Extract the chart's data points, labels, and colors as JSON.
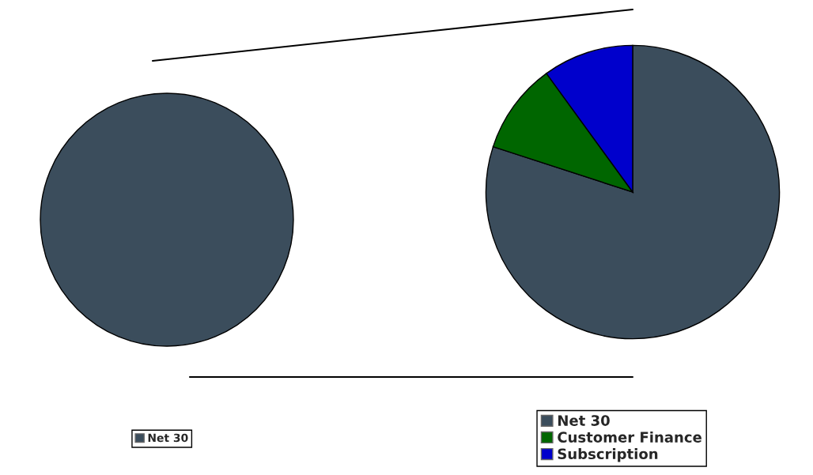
{
  "chart_data": [
    {
      "type": "pie",
      "categories": [
        "Net 30"
      ],
      "values": [
        100
      ],
      "colors": [
        "#3b4d5c"
      ],
      "legend": "bottom"
    },
    {
      "type": "pie",
      "categories": [
        "Net 30",
        "Customer Finance",
        "Subscription"
      ],
      "values": [
        80,
        10,
        10
      ],
      "colors": [
        "#3b4d5c",
        "#006600",
        "#0000cc"
      ],
      "legend": "bottom right"
    }
  ]
}
